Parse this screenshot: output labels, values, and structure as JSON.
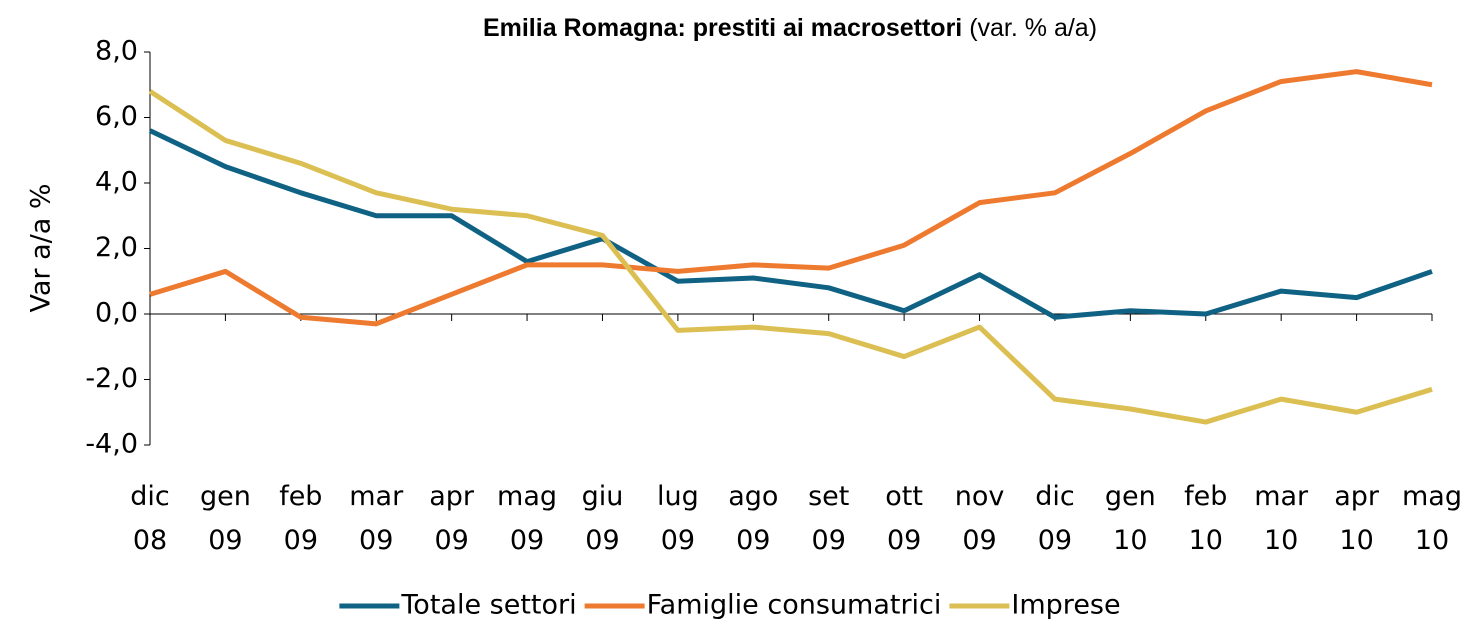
{
  "chart_data": {
    "type": "line",
    "title": "Emilia Romagna: prestiti ai macrosettori",
    "title_note": "(var. % a/a)",
    "y_label": "Var a/a %",
    "categories": [
      "dic 08",
      "gen 09",
      "feb 09",
      "mar 09",
      "apr 09",
      "mag 09",
      "giu 09",
      "lug 09",
      "ago 09",
      "set 09",
      "ott 09",
      "nov 09",
      "dic 09",
      "gen 10",
      "feb 10",
      "mar 10",
      "apr 10",
      "mag 10"
    ],
    "series": [
      {
        "name": "Totale settori",
        "color": "#0f6284",
        "values": [
          5.6,
          4.5,
          3.7,
          3.0,
          3.0,
          1.6,
          2.3,
          1.0,
          1.1,
          0.8,
          0.1,
          1.2,
          -0.1,
          0.1,
          0.0,
          0.7,
          0.5,
          1.3
        ]
      },
      {
        "name": "Famiglie consumatrici",
        "color": "#ee7a30",
        "values": [
          0.6,
          1.3,
          -0.1,
          -0.3,
          0.6,
          1.5,
          1.5,
          1.3,
          1.5,
          1.4,
          2.1,
          3.4,
          3.7,
          4.9,
          6.2,
          7.1,
          7.4,
          7.0
        ]
      },
      {
        "name": "Imprese",
        "color": "#dcbf52",
        "values": [
          6.8,
          5.3,
          4.6,
          3.7,
          3.2,
          3.0,
          2.4,
          -0.5,
          -0.4,
          -0.6,
          -1.3,
          -0.4,
          -2.6,
          -2.9,
          -3.3,
          -2.6,
          -3.0,
          -2.3
        ]
      }
    ],
    "ylim": [
      -4,
      8
    ],
    "yticks": [
      {
        "value": -4,
        "label": "-4,0"
      },
      {
        "value": -2,
        "label": "-2,0"
      },
      {
        "value": 0,
        "label": "0,0"
      },
      {
        "value": 2,
        "label": "2,0"
      },
      {
        "value": 4,
        "label": "4,0"
      },
      {
        "value": 6,
        "label": "6,0"
      },
      {
        "value": 8,
        "label": "8,0"
      }
    ],
    "grid": false,
    "legend": "bottom"
  }
}
